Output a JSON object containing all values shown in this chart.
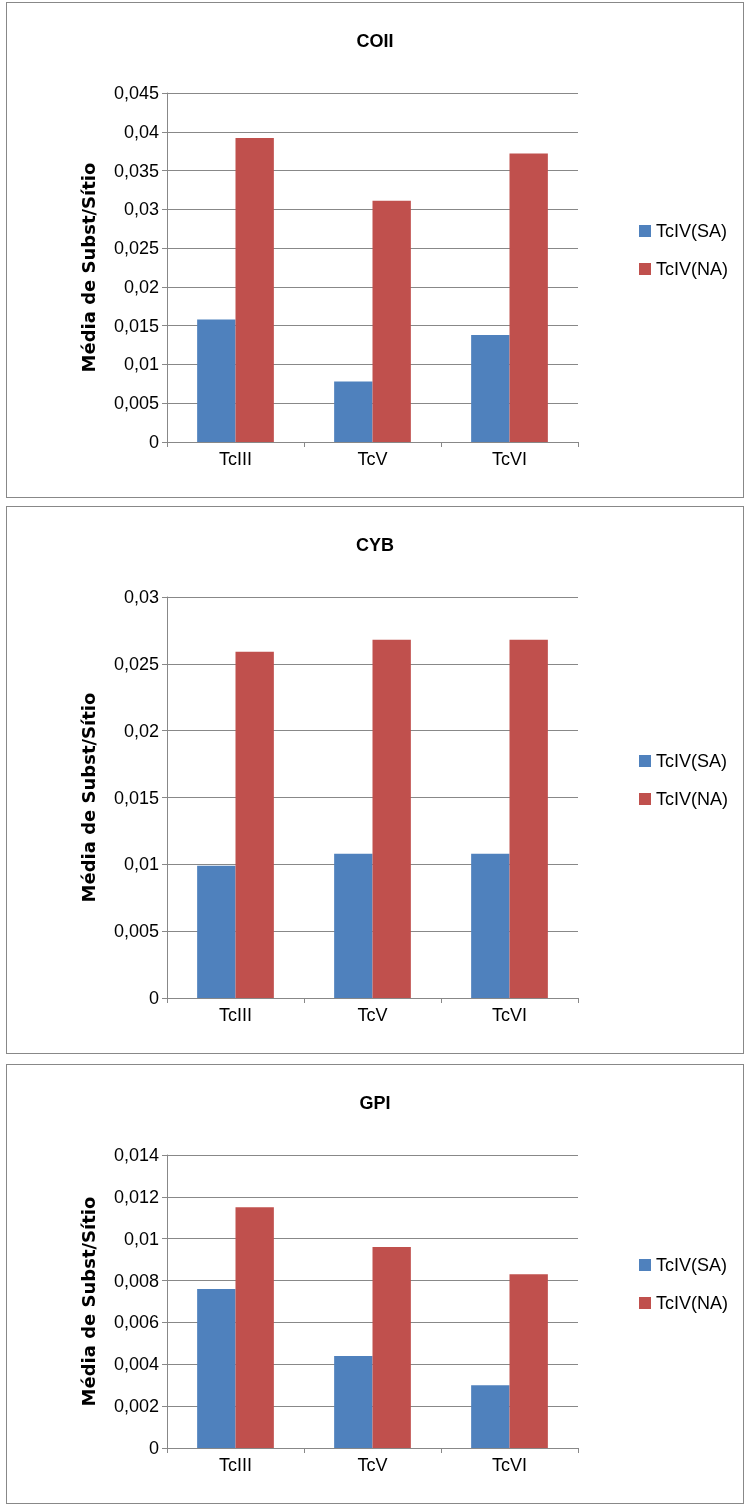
{
  "chart_data": [
    {
      "type": "bar",
      "title": "COII",
      "ylabel": "Média de Subst/Sítio",
      "categories": [
        "TcIII",
        "TcV",
        "TcVI"
      ],
      "series": [
        {
          "name": "TcIV(SA)",
          "color": "#4f81bd",
          "values": [
            0.0158,
            0.0078,
            0.0138
          ]
        },
        {
          "name": "TcIV(NA)",
          "color": "#c0504d",
          "values": [
            0.0392,
            0.0311,
            0.0372
          ]
        }
      ],
      "ylim": [
        0,
        0.045
      ],
      "yticks": [
        {
          "value": 0,
          "label": "0"
        },
        {
          "value": 0.005,
          "label": "0,005"
        },
        {
          "value": 0.01,
          "label": "0,01"
        },
        {
          "value": 0.015,
          "label": "0,015"
        },
        {
          "value": 0.02,
          "label": "0,02"
        },
        {
          "value": 0.025,
          "label": "0,025"
        },
        {
          "value": 0.03,
          "label": "0,03"
        },
        {
          "value": 0.035,
          "label": "0,035"
        },
        {
          "value": 0.04,
          "label": "0,04"
        },
        {
          "value": 0.045,
          "label": "0,045"
        }
      ],
      "grid": "y",
      "legend": "right"
    },
    {
      "type": "bar",
      "title": "CYB",
      "ylabel": "Média de Subst/Sítio",
      "categories": [
        "TcIII",
        "TcV",
        "TcVI"
      ],
      "series": [
        {
          "name": "TcIV(SA)",
          "color": "#4f81bd",
          "values": [
            0.0099,
            0.0108,
            0.0108
          ]
        },
        {
          "name": "TcIV(NA)",
          "color": "#c0504d",
          "values": [
            0.0259,
            0.0268,
            0.0268
          ]
        }
      ],
      "ylim": [
        0,
        0.03
      ],
      "yticks": [
        {
          "value": 0,
          "label": "0"
        },
        {
          "value": 0.005,
          "label": "0,005"
        },
        {
          "value": 0.01,
          "label": "0,01"
        },
        {
          "value": 0.015,
          "label": "0,015"
        },
        {
          "value": 0.02,
          "label": "0,02"
        },
        {
          "value": 0.025,
          "label": "0,025"
        },
        {
          "value": 0.03,
          "label": "0,03"
        }
      ],
      "grid": "y",
      "legend": "right"
    },
    {
      "type": "bar",
      "title": "GPI",
      "ylabel": "Média de Subst/Sítio",
      "categories": [
        "TcIII",
        "TcV",
        "TcVI"
      ],
      "series": [
        {
          "name": "TcIV(SA)",
          "color": "#4f81bd",
          "values": [
            0.0076,
            0.0044,
            0.003
          ]
        },
        {
          "name": "TcIV(NA)",
          "color": "#c0504d",
          "values": [
            0.0115,
            0.0096,
            0.0083
          ]
        }
      ],
      "ylim": [
        0,
        0.014
      ],
      "yticks": [
        {
          "value": 0,
          "label": "0"
        },
        {
          "value": 0.002,
          "label": "0,002"
        },
        {
          "value": 0.004,
          "label": "0,004"
        },
        {
          "value": 0.006,
          "label": "0,006"
        },
        {
          "value": 0.008,
          "label": "0,008"
        },
        {
          "value": 0.01,
          "label": "0,01"
        },
        {
          "value": 0.012,
          "label": "0,012"
        },
        {
          "value": 0.014,
          "label": "0,014"
        }
      ],
      "grid": "y",
      "legend": "right"
    }
  ]
}
